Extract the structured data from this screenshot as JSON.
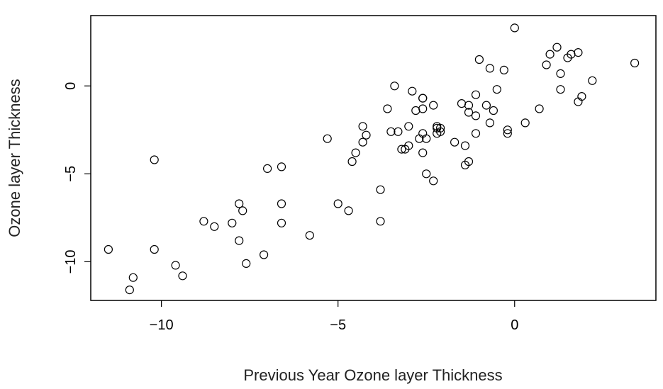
{
  "chart_data": {
    "type": "scatter",
    "title": "",
    "xlabel": "Previous Year Ozone layer Thickness",
    "ylabel": "Ozone layer Thickness",
    "xlim": [
      -12,
      4
    ],
    "ylim": [
      -12.2,
      4
    ],
    "xticks": [
      -10,
      -5,
      0
    ],
    "yticks": [
      -10,
      -5,
      0
    ],
    "xtick_labels": [
      "−10",
      "−5",
      "0"
    ],
    "ytick_labels": [
      "−10",
      "−5",
      "0"
    ],
    "grid": false,
    "legend": "none",
    "marker": "open-circle",
    "points": [
      {
        "x": -11.5,
        "y": -9.3
      },
      {
        "x": -10.8,
        "y": -10.9
      },
      {
        "x": -10.9,
        "y": -11.6
      },
      {
        "x": -10.2,
        "y": -9.3
      },
      {
        "x": -10.2,
        "y": -4.2
      },
      {
        "x": -9.6,
        "y": -10.2
      },
      {
        "x": -9.4,
        "y": -10.8
      },
      {
        "x": -8.8,
        "y": -7.7
      },
      {
        "x": -8.5,
        "y": -8.0
      },
      {
        "x": -8.0,
        "y": -7.8
      },
      {
        "x": -7.8,
        "y": -6.7
      },
      {
        "x": -7.8,
        "y": -8.8
      },
      {
        "x": -7.7,
        "y": -7.1
      },
      {
        "x": -7.6,
        "y": -10.1
      },
      {
        "x": -7.1,
        "y": -9.6
      },
      {
        "x": -7.0,
        "y": -4.7
      },
      {
        "x": -6.6,
        "y": -4.6
      },
      {
        "x": -6.6,
        "y": -6.7
      },
      {
        "x": -6.6,
        "y": -7.8
      },
      {
        "x": -5.8,
        "y": -8.5
      },
      {
        "x": -5.3,
        "y": -3.0
      },
      {
        "x": -5.0,
        "y": -6.7
      },
      {
        "x": -4.7,
        "y": -7.1
      },
      {
        "x": -4.6,
        "y": -4.3
      },
      {
        "x": -4.5,
        "y": -3.8
      },
      {
        "x": -4.3,
        "y": -3.2
      },
      {
        "x": -4.2,
        "y": -2.8
      },
      {
        "x": -4.3,
        "y": -2.3
      },
      {
        "x": -3.8,
        "y": -5.9
      },
      {
        "x": -3.8,
        "y": -7.7
      },
      {
        "x": -3.6,
        "y": -1.3
      },
      {
        "x": -3.5,
        "y": -2.6
      },
      {
        "x": -3.4,
        "y": 0.0
      },
      {
        "x": -3.3,
        "y": -2.6
      },
      {
        "x": -3.2,
        "y": -3.6
      },
      {
        "x": -3.1,
        "y": -3.6
      },
      {
        "x": -3.0,
        "y": -3.4
      },
      {
        "x": -3.0,
        "y": -2.3
      },
      {
        "x": -2.9,
        "y": -0.3
      },
      {
        "x": -2.8,
        "y": -1.4
      },
      {
        "x": -2.7,
        "y": -3.0
      },
      {
        "x": -2.6,
        "y": -2.7
      },
      {
        "x": -2.6,
        "y": -3.8
      },
      {
        "x": -2.6,
        "y": -1.3
      },
      {
        "x": -2.6,
        "y": -0.7
      },
      {
        "x": -2.6,
        "y": -0.7
      },
      {
        "x": -2.5,
        "y": -5.0
      },
      {
        "x": -2.5,
        "y": -3.0
      },
      {
        "x": -2.3,
        "y": -5.4
      },
      {
        "x": -2.3,
        "y": -1.1
      },
      {
        "x": -2.2,
        "y": -2.3
      },
      {
        "x": -2.2,
        "y": -2.4
      },
      {
        "x": -2.2,
        "y": -2.7
      },
      {
        "x": -2.1,
        "y": -2.4
      },
      {
        "x": -2.1,
        "y": -2.6
      },
      {
        "x": -1.7,
        "y": -3.2
      },
      {
        "x": -1.5,
        "y": -1.0
      },
      {
        "x": -1.4,
        "y": -3.4
      },
      {
        "x": -1.4,
        "y": -4.5
      },
      {
        "x": -1.3,
        "y": -4.3
      },
      {
        "x": -1.3,
        "y": -1.1
      },
      {
        "x": -1.3,
        "y": -1.5
      },
      {
        "x": -1.1,
        "y": -0.5
      },
      {
        "x": -1.1,
        "y": -1.7
      },
      {
        "x": -1.1,
        "y": -2.7
      },
      {
        "x": -1.0,
        "y": 1.5
      },
      {
        "x": -0.8,
        "y": -1.1
      },
      {
        "x": -0.7,
        "y": -2.1
      },
      {
        "x": -0.7,
        "y": 1.0
      },
      {
        "x": -0.6,
        "y": -1.4
      },
      {
        "x": -0.5,
        "y": -0.2
      },
      {
        "x": -0.3,
        "y": 0.9
      },
      {
        "x": -0.2,
        "y": -2.7
      },
      {
        "x": -0.2,
        "y": -2.5
      },
      {
        "x": 0.0,
        "y": 3.3
      },
      {
        "x": 0.3,
        "y": -2.1
      },
      {
        "x": 0.7,
        "y": -1.3
      },
      {
        "x": 0.9,
        "y": 1.2
      },
      {
        "x": 1.0,
        "y": 1.8
      },
      {
        "x": 1.2,
        "y": 2.2
      },
      {
        "x": 1.3,
        "y": -0.2
      },
      {
        "x": 1.3,
        "y": 0.7
      },
      {
        "x": 1.5,
        "y": 1.6
      },
      {
        "x": 1.6,
        "y": 1.8
      },
      {
        "x": 1.8,
        "y": 1.9
      },
      {
        "x": 1.8,
        "y": -0.9
      },
      {
        "x": 1.9,
        "y": -0.6
      },
      {
        "x": 2.2,
        "y": 0.3
      },
      {
        "x": 3.4,
        "y": 1.3
      }
    ]
  }
}
